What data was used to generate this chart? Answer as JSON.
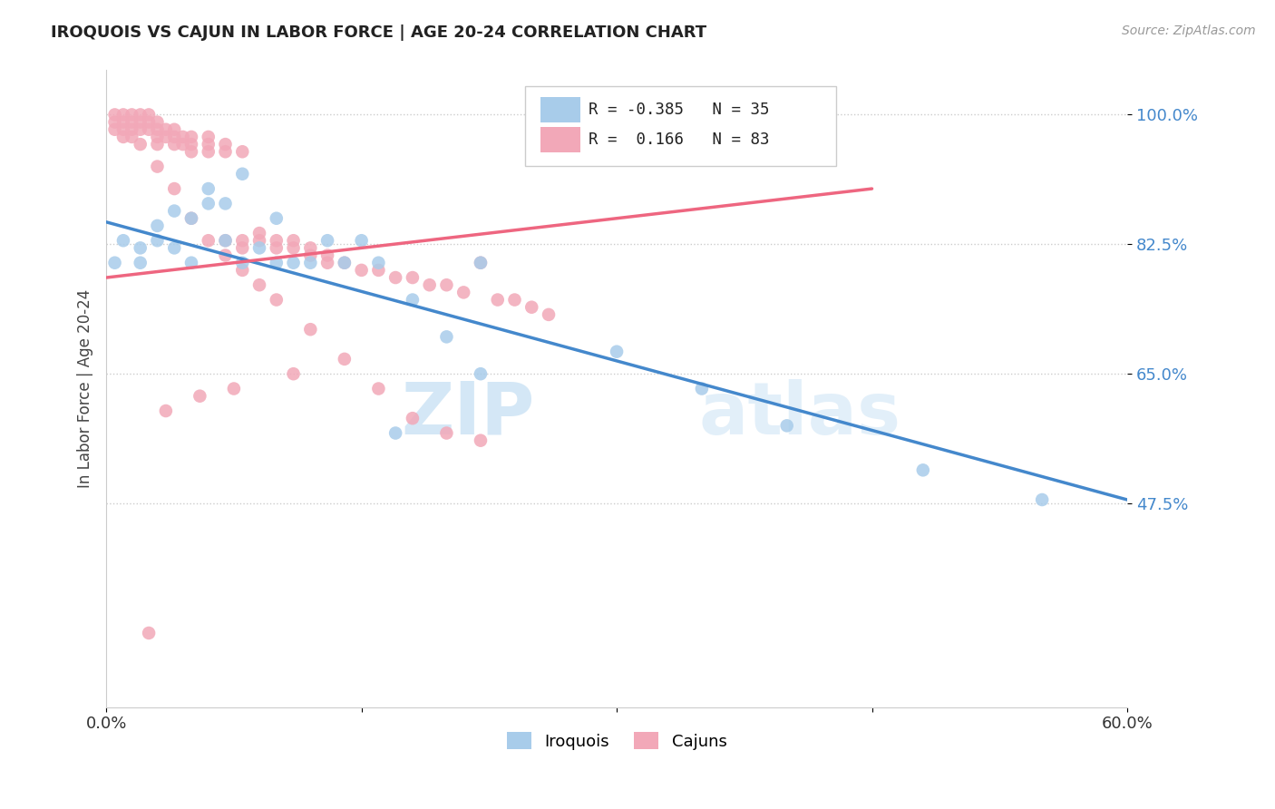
{
  "title": "IROQUOIS VS CAJUN IN LABOR FORCE | AGE 20-24 CORRELATION CHART",
  "source_text": "Source: ZipAtlas.com",
  "ylabel": "In Labor Force | Age 20-24",
  "xlim": [
    0.0,
    0.6
  ],
  "ylim": [
    0.2,
    1.06
  ],
  "yticks": [
    0.475,
    0.65,
    0.825,
    1.0
  ],
  "ytick_labels": [
    "47.5%",
    "65.0%",
    "82.5%",
    "100.0%"
  ],
  "xticks": [
    0.0,
    0.15,
    0.3,
    0.45,
    0.6
  ],
  "xtick_labels": [
    "0.0%",
    "",
    "",
    "",
    "60.0%"
  ],
  "legend_blue_r": "-0.385",
  "legend_blue_n": "35",
  "legend_pink_r": "0.166",
  "legend_pink_n": "83",
  "blue_color": "#A8CCEA",
  "pink_color": "#F2A8B8",
  "blue_line_color": "#4488CC",
  "pink_line_color": "#EE6680",
  "watermark1": "ZIP",
  "watermark2": "atlas",
  "iroquois_x": [
    0.005,
    0.01,
    0.02,
    0.02,
    0.03,
    0.03,
    0.04,
    0.04,
    0.05,
    0.05,
    0.06,
    0.06,
    0.07,
    0.07,
    0.08,
    0.08,
    0.09,
    0.1,
    0.1,
    0.11,
    0.12,
    0.13,
    0.14,
    0.15,
    0.16,
    0.18,
    0.2,
    0.22,
    0.3,
    0.35,
    0.4,
    0.48,
    0.55,
    0.22,
    0.17
  ],
  "iroquois_y": [
    0.8,
    0.83,
    0.82,
    0.8,
    0.85,
    0.83,
    0.87,
    0.82,
    0.86,
    0.8,
    0.9,
    0.88,
    0.88,
    0.83,
    0.92,
    0.8,
    0.82,
    0.86,
    0.8,
    0.8,
    0.8,
    0.83,
    0.8,
    0.83,
    0.8,
    0.75,
    0.7,
    0.8,
    0.68,
    0.63,
    0.58,
    0.52,
    0.48,
    0.65,
    0.57
  ],
  "cajun_x": [
    0.005,
    0.005,
    0.005,
    0.01,
    0.01,
    0.01,
    0.01,
    0.015,
    0.015,
    0.015,
    0.015,
    0.02,
    0.02,
    0.02,
    0.02,
    0.025,
    0.025,
    0.025,
    0.03,
    0.03,
    0.03,
    0.03,
    0.035,
    0.035,
    0.04,
    0.04,
    0.04,
    0.045,
    0.045,
    0.05,
    0.05,
    0.05,
    0.06,
    0.06,
    0.06,
    0.07,
    0.07,
    0.07,
    0.08,
    0.08,
    0.08,
    0.09,
    0.09,
    0.1,
    0.1,
    0.11,
    0.11,
    0.12,
    0.12,
    0.13,
    0.13,
    0.14,
    0.15,
    0.16,
    0.17,
    0.18,
    0.19,
    0.2,
    0.21,
    0.22,
    0.23,
    0.24,
    0.25,
    0.26,
    0.03,
    0.04,
    0.05,
    0.06,
    0.07,
    0.08,
    0.09,
    0.1,
    0.12,
    0.14,
    0.16,
    0.18,
    0.2,
    0.22,
    0.025,
    0.035,
    0.055,
    0.075,
    0.11
  ],
  "cajun_y": [
    1.0,
    0.99,
    0.98,
    1.0,
    0.99,
    0.98,
    0.97,
    1.0,
    0.99,
    0.98,
    0.97,
    1.0,
    0.99,
    0.98,
    0.96,
    1.0,
    0.99,
    0.98,
    0.99,
    0.98,
    0.97,
    0.96,
    0.98,
    0.97,
    0.98,
    0.97,
    0.96,
    0.97,
    0.96,
    0.97,
    0.96,
    0.95,
    0.97,
    0.96,
    0.95,
    0.96,
    0.95,
    0.83,
    0.95,
    0.83,
    0.82,
    0.84,
    0.83,
    0.83,
    0.82,
    0.83,
    0.82,
    0.82,
    0.81,
    0.81,
    0.8,
    0.8,
    0.79,
    0.79,
    0.78,
    0.78,
    0.77,
    0.77,
    0.76,
    0.8,
    0.75,
    0.75,
    0.74,
    0.73,
    0.93,
    0.9,
    0.86,
    0.83,
    0.81,
    0.79,
    0.77,
    0.75,
    0.71,
    0.67,
    0.63,
    0.59,
    0.57,
    0.56,
    0.3,
    0.6,
    0.62,
    0.63,
    0.65
  ],
  "blue_trend_x": [
    0.0,
    0.6
  ],
  "blue_trend_y": [
    0.855,
    0.48
  ],
  "pink_trend_x": [
    0.0,
    0.45
  ],
  "pink_trend_y": [
    0.78,
    0.9
  ]
}
